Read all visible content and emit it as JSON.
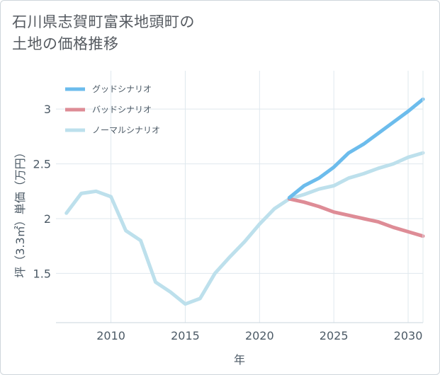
{
  "title": {
    "line1": "石川県志賀町富来地頭町の",
    "line2": "土地の価格推移"
  },
  "chart_data": {
    "type": "line",
    "xlabel": "年",
    "ylabel": "坪（3.3㎡）単価（万円）",
    "xlim": [
      2006.3,
      2031
    ],
    "ylim": [
      1.05,
      3.35
    ],
    "xticks": [
      2010,
      2015,
      2020,
      2025,
      2030
    ],
    "xtick_labels": [
      "2010",
      "2015",
      "2020",
      "2025",
      "2030"
    ],
    "yticks": [
      1.5,
      2,
      2.5,
      3
    ],
    "ytick_labels": [
      "1.5",
      "2",
      "2.5",
      "3"
    ],
    "grid": true,
    "legend_position": "top-left",
    "series": [
      {
        "name": "グッドシナリオ",
        "color": "#6cbcec",
        "x": [
          2022,
          2023,
          2024,
          2025,
          2026,
          2027,
          2028,
          2029,
          2030,
          2031
        ],
        "values": [
          2.19,
          2.3,
          2.37,
          2.47,
          2.6,
          2.68,
          2.78,
          2.88,
          2.98,
          3.09
        ]
      },
      {
        "name": "バッドシナリオ",
        "color": "#de8c96",
        "x": [
          2022,
          2023,
          2024,
          2025,
          2026,
          2027,
          2028,
          2029,
          2030,
          2031
        ],
        "values": [
          2.18,
          2.15,
          2.11,
          2.06,
          2.03,
          2.0,
          1.97,
          1.92,
          1.88,
          1.84
        ]
      },
      {
        "name": "ノーマルシナリオ",
        "color": "#bde0ec",
        "x": [
          2007,
          2008,
          2009,
          2010,
          2011,
          2012,
          2013,
          2014,
          2015,
          2016,
          2017,
          2018,
          2019,
          2020,
          2021,
          2022,
          2023,
          2024,
          2025,
          2026,
          2027,
          2028,
          2029,
          2030,
          2031
        ],
        "values": [
          2.05,
          2.23,
          2.25,
          2.2,
          1.89,
          1.8,
          1.42,
          1.33,
          1.22,
          1.27,
          1.5,
          1.65,
          1.79,
          1.95,
          2.09,
          2.18,
          2.22,
          2.27,
          2.3,
          2.37,
          2.41,
          2.46,
          2.5,
          2.56,
          2.6
        ]
      }
    ]
  }
}
